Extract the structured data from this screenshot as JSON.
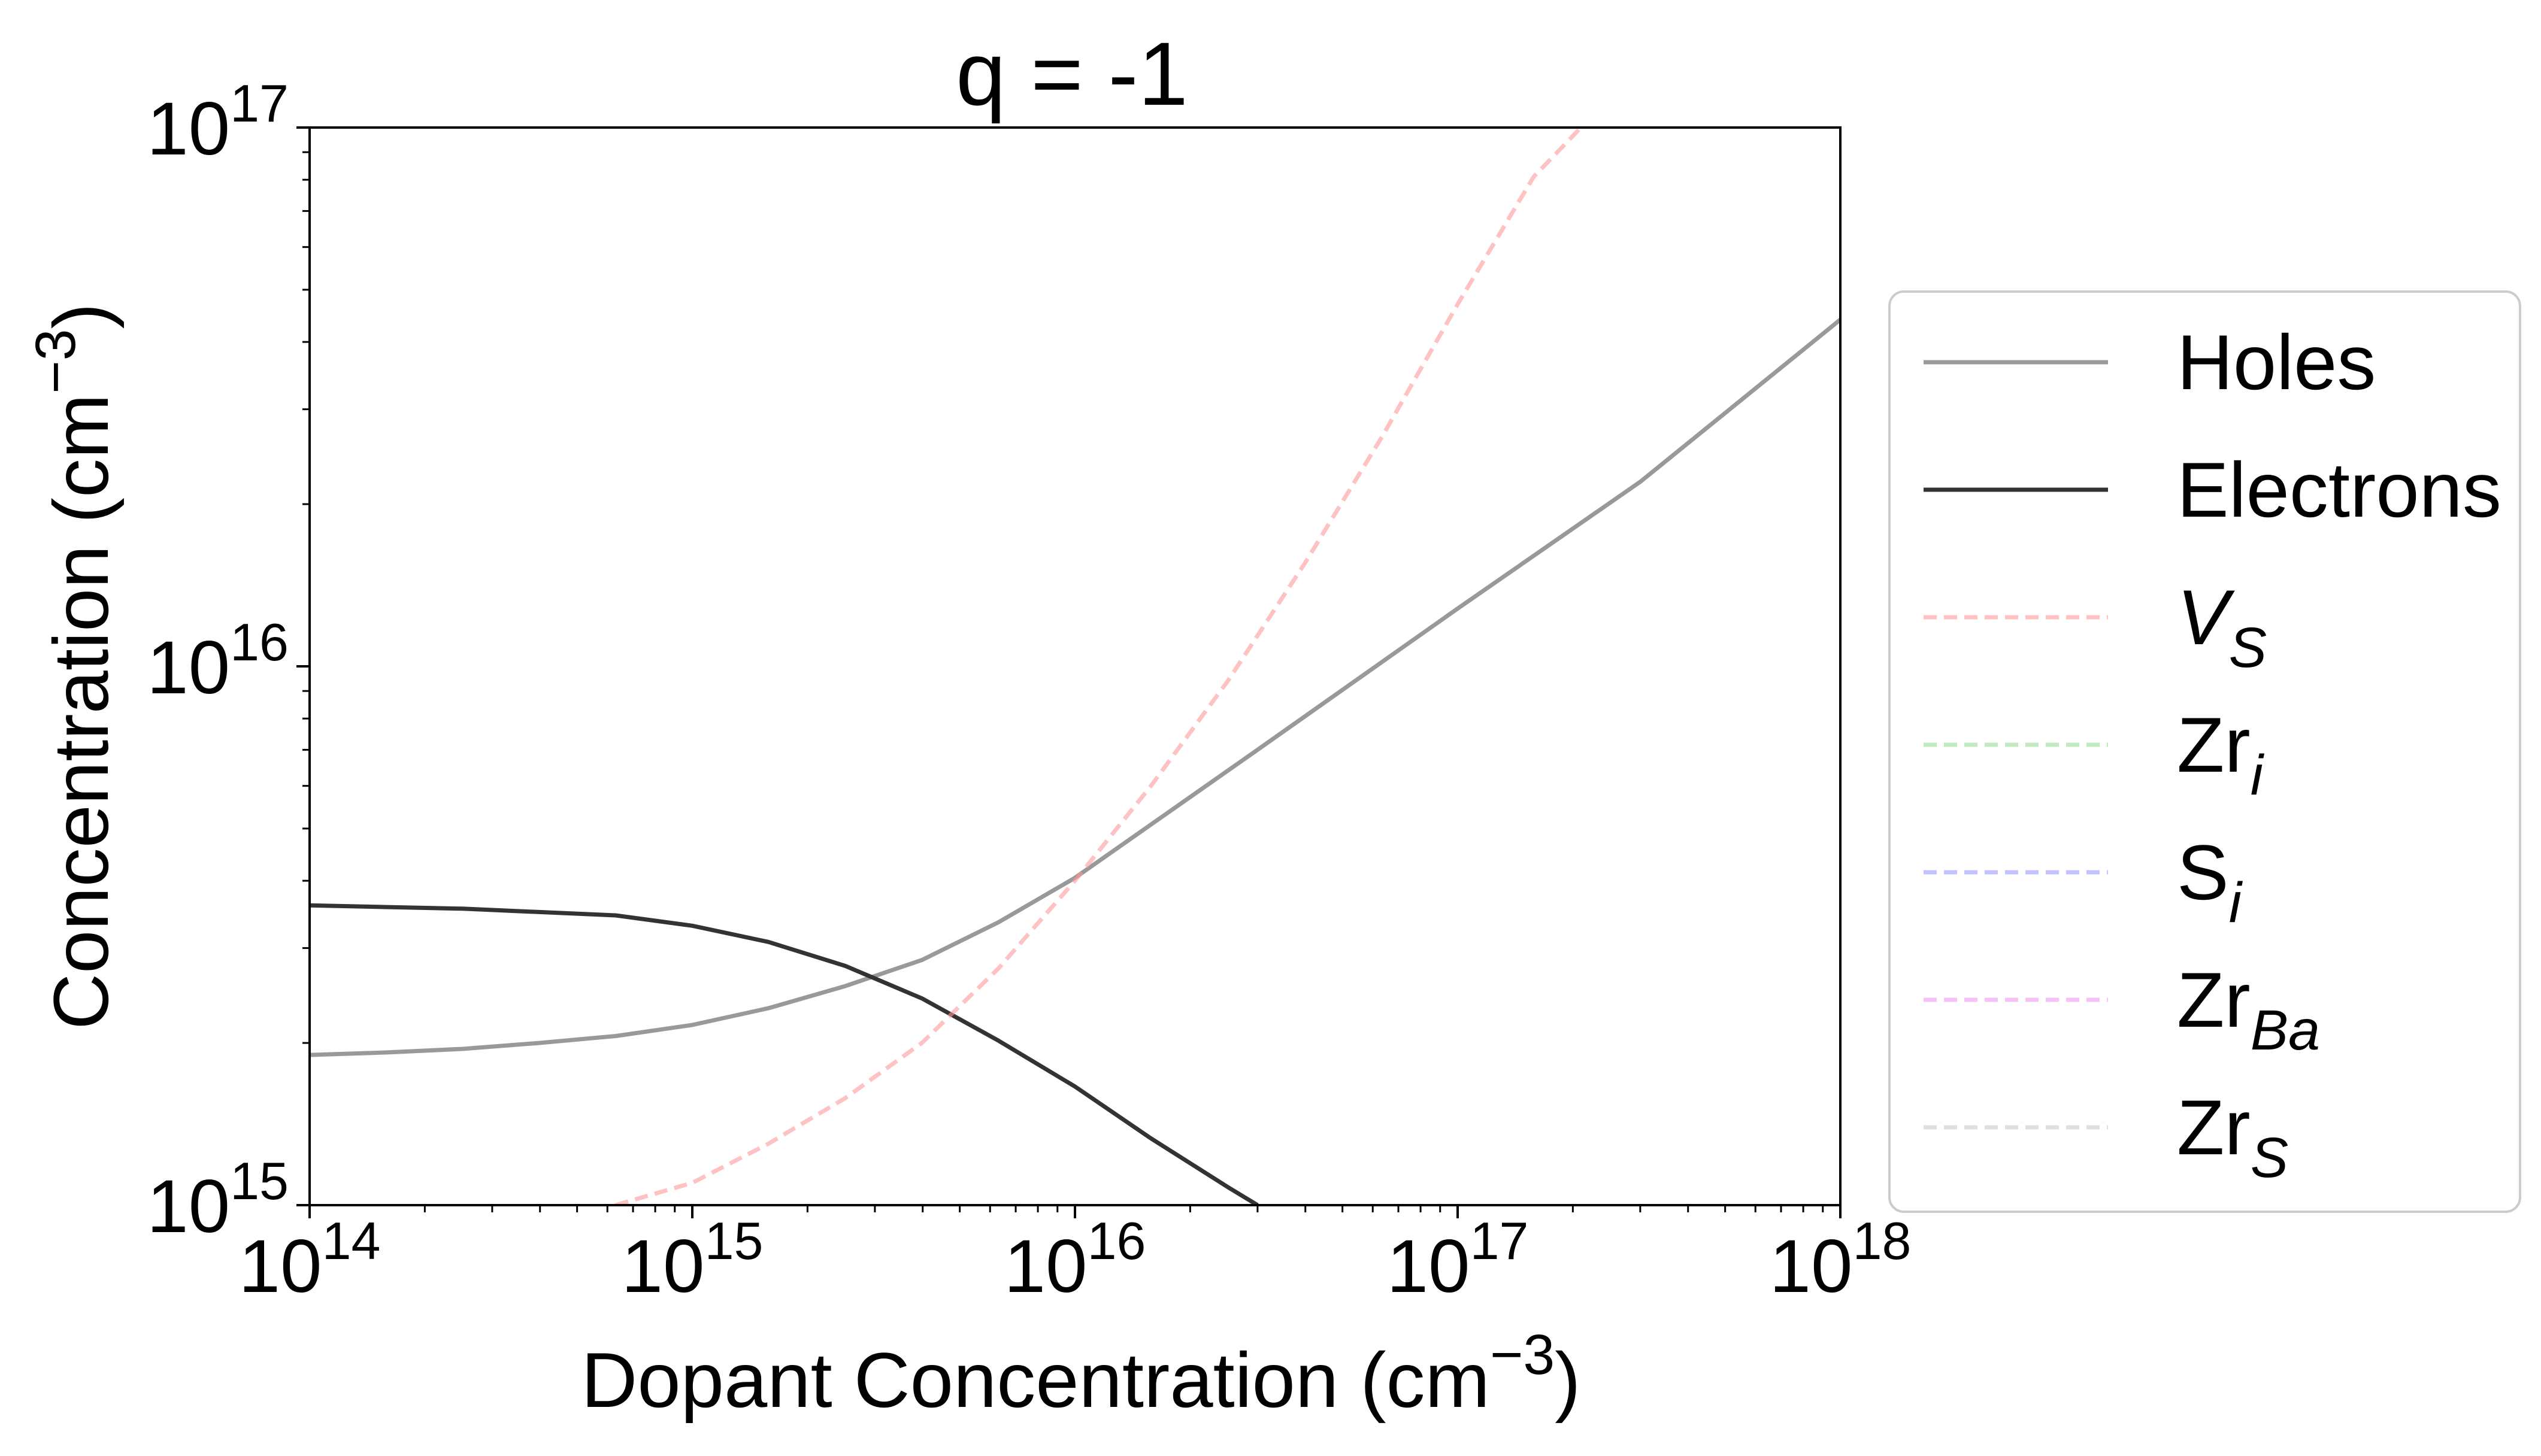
{
  "chart_data": {
    "type": "line",
    "title": "q = -1",
    "xlabel": "Dopant Concentration (cm",
    "xlabel_exp": "−3",
    "xlabel_close": ")",
    "ylabel": "Concentration (cm",
    "ylabel_exp": "−3",
    "ylabel_close": ")",
    "xscale": "log",
    "yscale": "log",
    "xlim": [
      100000000000000.0,
      1e+18
    ],
    "ylim": [
      1000000000000000.0,
      1e+17
    ],
    "grid": false,
    "legend_position": "outside-right",
    "x_ticks": [
      {
        "value": 100000000000000.0,
        "base": "10",
        "exp": "14"
      },
      {
        "value": 1000000000000000.0,
        "base": "10",
        "exp": "15"
      },
      {
        "value": 1e+16,
        "base": "10",
        "exp": "16"
      },
      {
        "value": 1e+17,
        "base": "10",
        "exp": "17"
      },
      {
        "value": 1e+18,
        "base": "10",
        "exp": "18"
      }
    ],
    "y_ticks": [
      {
        "value": 1000000000000000.0,
        "base": "10",
        "exp": "15"
      },
      {
        "value": 1e+16,
        "base": "10",
        "exp": "16"
      },
      {
        "value": 1e+17,
        "base": "10",
        "exp": "17"
      }
    ],
    "series": [
      {
        "name": "Holes",
        "name_base": "Holes",
        "name_sub": "",
        "color": "#999999",
        "dash": "solid",
        "opacity": 1,
        "x": [
          100000000000000.0,
          158000000000000.0,
          251000000000000.0,
          398000000000000.0,
          631000000000000.0,
          1000000000000000.0,
          1580000000000000.0,
          2510000000000000.0,
          3980000000000000.0,
          6310000000000000.0,
          1e+16,
          3e+16,
          1e+17,
          3e+17,
          1e+18
        ],
        "y": [
          1900000000000000.0,
          1920000000000000.0,
          1950000000000000.0,
          2000000000000000.0,
          2060000000000000.0,
          2160000000000000.0,
          2320000000000000.0,
          2550000000000000.0,
          2850000000000000.0,
          3350000000000000.0,
          4050000000000000.0,
          7000000000000000.0,
          1.28e+16,
          2.2e+16,
          4.4e+16
        ]
      },
      {
        "name": "Electrons",
        "name_base": "Electrons",
        "name_sub": "",
        "color": "#333333",
        "dash": "solid",
        "opacity": 1,
        "x": [
          100000000000000.0,
          251000000000000.0,
          631000000000000.0,
          1000000000000000.0,
          1580000000000000.0,
          2510000000000000.0,
          3980000000000000.0,
          6310000000000000.0,
          1e+16,
          1.58e+16,
          2.51e+16,
          3e+16
        ],
        "y": [
          3600000000000000.0,
          3550000000000000.0,
          3450000000000000.0,
          3300000000000000.0,
          3080000000000000.0,
          2780000000000000.0,
          2420000000000000.0,
          2020000000000000.0,
          1660000000000000.0,
          1330000000000000.0,
          1080000000000000.0,
          1000000000000000.0
        ]
      },
      {
        "name": "V_S",
        "name_base": "V",
        "name_sub": "S",
        "italic_base": true,
        "color": "#ff9999",
        "dash": "dashed",
        "opacity": 0.6,
        "x": [
          630000000000000.0,
          1000000000000000.0,
          1580000000000000.0,
          2510000000000000.0,
          3980000000000000.0,
          6310000000000000.0,
          1e+16,
          1.58e+16,
          2.51e+16,
          3.98e+16,
          6.31e+16,
          1e+17,
          1.58e+17,
          2.1e+17
        ],
        "y": [
          1000000000000000.0,
          1100000000000000.0,
          1300000000000000.0,
          1580000000000000.0,
          2000000000000000.0,
          2750000000000000.0,
          4000000000000000.0,
          6000000000000000.0,
          9400000000000000.0,
          1.55e+16,
          2.65e+16,
          4.7e+16,
          8.1e+16,
          1e+17
        ]
      },
      {
        "name": "Zr_i",
        "name_base": "Zr",
        "name_sub": "i",
        "color": "#99dd99",
        "dash": "dashed",
        "opacity": 0.6,
        "x": [],
        "y": []
      },
      {
        "name": "S_i",
        "name_base": "S",
        "name_sub": "i",
        "color": "#9999ff",
        "dash": "dashed",
        "opacity": 0.6,
        "x": [],
        "y": []
      },
      {
        "name": "Zr_Ba",
        "name_base": "Zr",
        "name_sub": "Ba",
        "color": "#ee99ee",
        "dash": "dashed",
        "opacity": 0.6,
        "x": [],
        "y": []
      },
      {
        "name": "Zr_S",
        "name_base": "Zr",
        "name_sub": "S",
        "color": "#cccccc",
        "dash": "dashed",
        "opacity": 0.6,
        "x": [],
        "y": []
      }
    ]
  }
}
